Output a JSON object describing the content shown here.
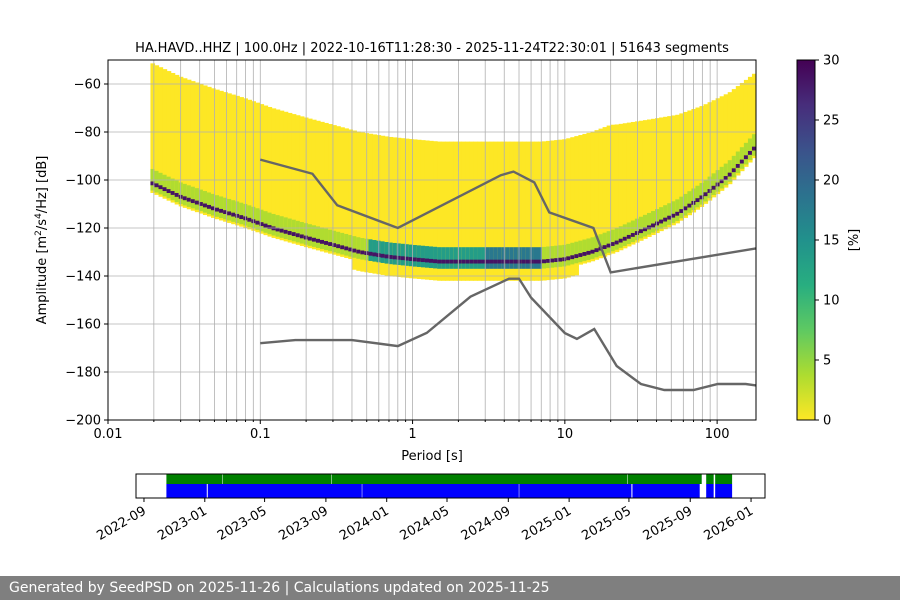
{
  "chart_data": [
    {
      "type": "heatmap",
      "title": "HA.HAVD..HHZ | 100.0Hz | 2022-10-16T11:28:30 - 2025-11-24T22:30:01 | 51643 segments",
      "xlabel": "Period [s]",
      "ylabel_parts": [
        "Amplitude [m",
        "2",
        "/s",
        "4",
        "/Hz] [dB]"
      ],
      "x_scale": "log",
      "xlim": [
        0.01,
        180
      ],
      "ylim": [
        -200,
        -50
      ],
      "x_ticks": [
        {
          "value": 0.01,
          "label": "0.01"
        },
        {
          "value": 0.1,
          "label": "0.1"
        },
        {
          "value": 1,
          "label": "1"
        },
        {
          "value": 10,
          "label": "10"
        },
        {
          "value": 100,
          "label": "100"
        }
      ],
      "y_ticks": [
        {
          "value": -60,
          "label": "−60"
        },
        {
          "value": -80,
          "label": "−80"
        },
        {
          "value": -100,
          "label": "−100"
        },
        {
          "value": -120,
          "label": "−120"
        },
        {
          "value": -140,
          "label": "−140"
        },
        {
          "value": -160,
          "label": "−160"
        },
        {
          "value": -180,
          "label": "−180"
        },
        {
          "value": -200,
          "label": "−200"
        }
      ],
      "grid": true,
      "colormap": "viridis_r",
      "colorbar": {
        "label": "[%]",
        "range": [
          0,
          30
        ],
        "ticks": [
          {
            "value": 0,
            "label": "0"
          },
          {
            "value": 5,
            "label": "5"
          },
          {
            "value": 10,
            "label": "10"
          },
          {
            "value": 15,
            "label": "15"
          },
          {
            "value": 20,
            "label": "20"
          },
          {
            "value": 25,
            "label": "25"
          },
          {
            "value": 30,
            "label": "30"
          }
        ]
      },
      "psd_mode": {
        "period": [
          0.019,
          0.03,
          0.05,
          0.08,
          0.12,
          0.2,
          0.3,
          0.45,
          0.7,
          1.0,
          1.5,
          2.5,
          4.0,
          5.0,
          7.0,
          10.0,
          15.0,
          22.0,
          35.0,
          55.0,
          80.0,
          120.0,
          180.0
        ],
        "db": [
          -101,
          -107,
          -112,
          -116,
          -120,
          -124,
          -127,
          -130,
          -132,
          -133,
          -134,
          -134,
          -134,
          -134,
          -134,
          -133,
          -130,
          -126,
          -120,
          -114,
          -107,
          -98,
          -86
        ]
      },
      "noise_models": [
        {
          "period": [
            0.1,
            0.22,
            0.32,
            0.8,
            3.8,
            4.6,
            6.3,
            7.9,
            15.4,
            20.0,
            180.0
          ],
          "db": [
            -91.5,
            -97.4,
            -110.5,
            -120.0,
            -98.0,
            -96.5,
            -101.0,
            -113.5,
            -120.0,
            -138.5,
            -128.5
          ]
        },
        {
          "period": [
            0.1,
            0.17,
            0.4,
            0.8,
            1.24,
            2.4,
            4.3,
            5.0,
            6.0,
            10.0,
            12.0,
            15.6,
            21.9,
            31.6,
            45.0,
            70.0,
            101.0,
            154.0,
            180.0
          ],
          "db": [
            -168.0,
            -166.7,
            -166.7,
            -169.2,
            -163.7,
            -148.6,
            -141.1,
            -141.1,
            -149.0,
            -163.8,
            -166.2,
            -162.1,
            -177.5,
            -185.0,
            -187.5,
            -187.5,
            -185.0,
            -185.0,
            -185.6
          ]
        }
      ]
    },
    {
      "type": "timeline",
      "x_ticks": [
        {
          "value": "2022-09-01",
          "label": "2022-09"
        },
        {
          "value": "2023-01-01",
          "label": "2023-01"
        },
        {
          "value": "2023-05-01",
          "label": "2023-05"
        },
        {
          "value": "2023-09-01",
          "label": "2023-09"
        },
        {
          "value": "2024-01-01",
          "label": "2024-01"
        },
        {
          "value": "2024-05-01",
          "label": "2024-05"
        },
        {
          "value": "2024-09-01",
          "label": "2024-09"
        },
        {
          "value": "2025-01-01",
          "label": "2025-01"
        },
        {
          "value": "2025-05-01",
          "label": "2025-05"
        },
        {
          "value": "2025-09-01",
          "label": "2025-09"
        },
        {
          "value": "2026-01-01",
          "label": "2026-01"
        }
      ],
      "xlim": [
        "2022-08-16",
        "2026-01-29"
      ],
      "available_data": [
        [
          "2022-10-16",
          "2023-02-05"
        ],
        [
          "2023-02-06",
          "2023-09-12"
        ],
        [
          "2023-09-13",
          "2025-04-28"
        ],
        [
          "2025-04-29",
          "2025-09-24"
        ],
        [
          "2025-10-03",
          "2025-10-18"
        ],
        [
          "2025-10-21",
          "2025-11-24"
        ]
      ],
      "psd_coverage": [
        [
          "2022-10-16",
          "2023-01-05"
        ],
        [
          "2023-01-07",
          "2023-11-12"
        ],
        [
          "2023-11-13",
          "2024-09-22"
        ],
        [
          "2024-09-23",
          "2025-05-06"
        ],
        [
          "2025-05-08",
          "2025-09-20"
        ],
        [
          "2025-10-03",
          "2025-10-18"
        ],
        [
          "2025-10-21",
          "2025-11-24"
        ]
      ],
      "colors": {
        "available_data": "#008000",
        "psd_coverage": "#0000ff"
      }
    }
  ],
  "footer": {
    "text": "Generated by SeedPSD on 2025-11-26 | Calculations updated on 2025-11-25"
  }
}
